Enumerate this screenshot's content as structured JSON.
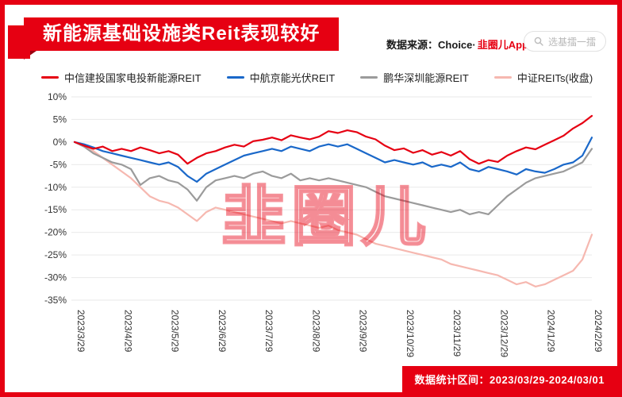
{
  "banner": {
    "title": "新能源基础设施类Reit表现较好"
  },
  "header": {
    "source_prefix": "数据来源：Choice·",
    "source_logo": "韭圈儿App",
    "search_pill": "选基擂一擂"
  },
  "watermark": "韭圈儿",
  "footer": {
    "stats_range": "数据统计区间：2023/03/29-2024/03/01"
  },
  "colors": {
    "accent": "#e60012",
    "ribbon_fold": "#9c0010",
    "grid": "#e9e9e9",
    "axis_text": "#333333"
  },
  "chart_data": {
    "type": "line",
    "title": "新能源基础设施类Reit表现较好",
    "xlabel": "",
    "ylabel": "",
    "grid": true,
    "legend_position": "top",
    "ylim": [
      -35,
      10
    ],
    "y_ticks": [
      10,
      5,
      0,
      -5,
      -10,
      -15,
      -20,
      -25,
      -30,
      -35
    ],
    "y_tick_labels": [
      "10%",
      "5%",
      "0%",
      "-5%",
      "-10%",
      "-15%",
      "-20%",
      "-25%",
      "-30%",
      "-35%"
    ],
    "x_tick_labels": [
      "2023/3/29",
      "2023/4/29",
      "2023/5/29",
      "2023/6/29",
      "2023/7/29",
      "2023/8/29",
      "2023/9/29",
      "2023/10/29",
      "2023/11/29",
      "2023/12/29",
      "2024/1/29",
      "2024/2/29"
    ],
    "series": [
      {
        "name": "中信建投国家电投新能源REIT",
        "color": "#e60012",
        "values": [
          0,
          -0.8,
          -1.5,
          -1.0,
          -2.0,
          -1.5,
          -2.0,
          -1.2,
          -1.8,
          -2.5,
          -2.0,
          -2.8,
          -4.8,
          -3.5,
          -2.5,
          -2.0,
          -1.2,
          -0.6,
          -1.0,
          0.2,
          0.5,
          1.0,
          0.4,
          1.5,
          1.0,
          0.6,
          1.2,
          2.4,
          2.0,
          2.6,
          2.2,
          1.2,
          0.6,
          -0.8,
          -1.8,
          -1.4,
          -2.4,
          -1.8,
          -2.8,
          -2.2,
          -3.0,
          -2.0,
          -3.8,
          -4.8,
          -4.0,
          -4.4,
          -3.0,
          -2.0,
          -1.2,
          -1.6,
          -0.6,
          0.4,
          1.4,
          3.0,
          4.2,
          5.8
        ]
      },
      {
        "name": "中航京能光伏REIT",
        "color": "#1a68c9",
        "values": [
          0,
          -0.5,
          -1.2,
          -2.0,
          -2.5,
          -3.0,
          -3.5,
          -4.0,
          -4.5,
          -5.0,
          -4.5,
          -5.5,
          -7.5,
          -8.8,
          -7.0,
          -6.0,
          -5.0,
          -4.0,
          -3.0,
          -2.5,
          -2.0,
          -1.5,
          -2.0,
          -1.0,
          -1.5,
          -2.0,
          -1.0,
          -0.5,
          -1.0,
          -0.5,
          -1.5,
          -2.5,
          -3.5,
          -4.5,
          -4.0,
          -4.5,
          -5.0,
          -4.5,
          -5.5,
          -5.0,
          -5.5,
          -4.5,
          -6.0,
          -6.5,
          -5.5,
          -6.0,
          -6.5,
          -7.2,
          -6.0,
          -6.5,
          -6.8,
          -6.0,
          -5.0,
          -4.5,
          -3.0,
          1.0
        ]
      },
      {
        "name": "鹏华深圳能源REIT",
        "color": "#9b9b9b",
        "values": [
          0,
          -1.0,
          -2.5,
          -3.5,
          -4.5,
          -5.0,
          -6.0,
          -9.5,
          -8.0,
          -7.5,
          -8.5,
          -9.0,
          -10.5,
          -13.0,
          -10.0,
          -8.5,
          -8.0,
          -7.5,
          -8.0,
          -7.0,
          -6.5,
          -7.5,
          -8.0,
          -7.0,
          -8.5,
          -8.0,
          -8.5,
          -8.0,
          -8.5,
          -9.0,
          -9.5,
          -10.0,
          -11.0,
          -12.0,
          -12.5,
          -13.0,
          -13.5,
          -14.0,
          -14.5,
          -15.0,
          -15.5,
          -15.0,
          -16.0,
          -15.5,
          -16.0,
          -14.0,
          -12.0,
          -10.5,
          -9.0,
          -8.0,
          -7.5,
          -7.0,
          -6.5,
          -5.5,
          -4.5,
          -1.5
        ]
      },
      {
        "name": "中证REITs(收盘)",
        "color": "#f6b8b0",
        "values": [
          0,
          -1.0,
          -2.0,
          -3.5,
          -5.0,
          -6.5,
          -8.0,
          -10.0,
          -12.0,
          -13.0,
          -13.5,
          -14.5,
          -16.0,
          -17.5,
          -15.5,
          -14.5,
          -15.0,
          -15.5,
          -16.0,
          -16.5,
          -17.0,
          -17.5,
          -18.0,
          -17.5,
          -18.0,
          -18.5,
          -19.0,
          -18.5,
          -19.5,
          -20.0,
          -20.5,
          -21.5,
          -22.5,
          -23.0,
          -23.5,
          -24.0,
          -24.5,
          -25.0,
          -25.5,
          -26.0,
          -27.0,
          -27.5,
          -28.0,
          -28.5,
          -29.0,
          -29.5,
          -30.5,
          -31.5,
          -31.0,
          -32.0,
          -31.5,
          -30.5,
          -29.5,
          -28.5,
          -26.0,
          -20.5
        ]
      }
    ]
  }
}
